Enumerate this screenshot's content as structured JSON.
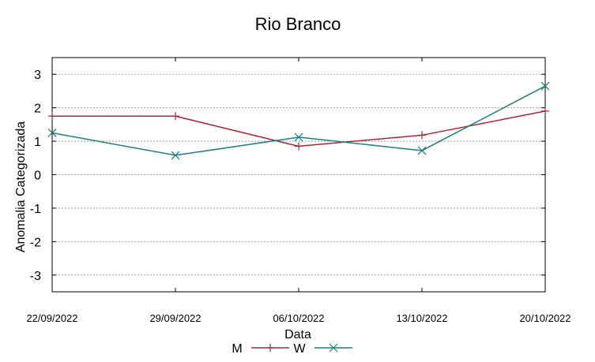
{
  "chart_data": {
    "type": "line",
    "title": "Rio Branco",
    "xlabel": "Data",
    "ylabel": "Anomalia Categorizada",
    "categories": [
      "22/09/2022",
      "29/09/2022",
      "06/10/2022",
      "13/10/2022",
      "20/10/2022"
    ],
    "yticks": [
      "3",
      "2",
      "1",
      "0",
      "-1",
      "-2",
      "-3"
    ],
    "ylim": [
      -3.5,
      3.5
    ],
    "grid": true,
    "legend_position": "bottom",
    "series": [
      {
        "name": "M",
        "values": [
          1.75,
          1.75,
          0.85,
          1.18,
          1.9
        ],
        "color": "#b22234",
        "marker": "plus"
      },
      {
        "name": "W",
        "values": [
          1.25,
          0.58,
          1.12,
          0.72,
          2.65
        ],
        "color": "#1a7f80",
        "marker": "cross"
      }
    ]
  }
}
